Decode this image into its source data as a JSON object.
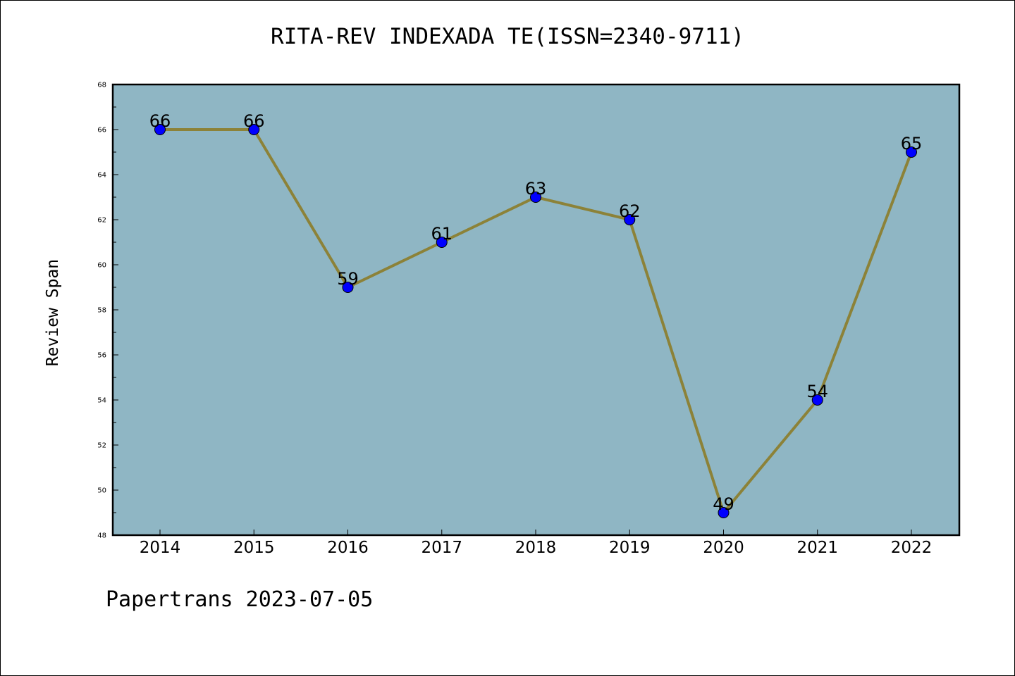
{
  "chart_data": {
    "type": "line",
    "title": "RITA-REV INDEXADA TE(ISSN=2340-9711)",
    "xlabel": "",
    "ylabel": "Review Span",
    "categories": [
      "2014",
      "2015",
      "2016",
      "2017",
      "2018",
      "2019",
      "2020",
      "2021",
      "2022"
    ],
    "values": [
      66,
      66,
      59,
      61,
      63,
      62,
      49,
      54,
      65
    ],
    "data_labels": [
      "66",
      "66",
      "59",
      "61",
      "63",
      "62",
      "49",
      "54",
      "65"
    ],
    "ylim": [
      48,
      68
    ],
    "yticks": [
      "48",
      "50",
      "52",
      "54",
      "56",
      "58",
      "60",
      "62",
      "64",
      "66",
      "68"
    ],
    "grid": false,
    "legend": "none",
    "colors": {
      "plot_background": "#8fb6c4",
      "line": "#8c8238",
      "marker": "#0000ff"
    }
  },
  "footer": "Papertrans 2023-07-05"
}
